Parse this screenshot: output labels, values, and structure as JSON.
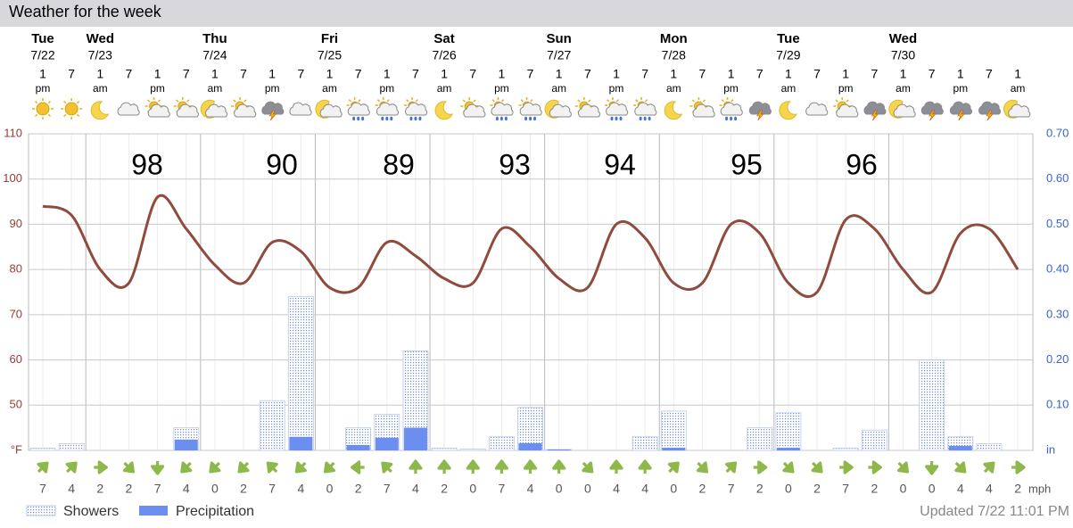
{
  "chart_data": {
    "type": "line",
    "title": "Weather for the week",
    "days": [
      "Tue",
      null,
      "Wed",
      null,
      null,
      null,
      "Thu",
      null,
      null,
      null,
      "Fri",
      null,
      null,
      null,
      "Sat",
      null,
      null,
      null,
      "Sun",
      null,
      null,
      null,
      "Mon",
      null,
      null,
      null,
      "Tue",
      null,
      null,
      null,
      "Wed",
      null,
      null,
      null,
      null
    ],
    "dates": [
      "7/22",
      null,
      "7/23",
      null,
      null,
      null,
      "7/24",
      null,
      null,
      null,
      "7/25",
      null,
      null,
      null,
      "7/26",
      null,
      null,
      null,
      "7/27",
      null,
      null,
      null,
      "7/28",
      null,
      null,
      null,
      "7/29",
      null,
      null,
      null,
      "7/30",
      null,
      null,
      null,
      null
    ],
    "hours": [
      "1",
      "7",
      "1",
      "7",
      "1",
      "7",
      "1",
      "7",
      "1",
      "7",
      "1",
      "7",
      "1",
      "7",
      "1",
      "7",
      "1",
      "7",
      "1",
      "7",
      "1",
      "7",
      "1",
      "7",
      "1",
      "7",
      "1",
      "7",
      "1",
      "7",
      "1",
      "7",
      "1",
      "7",
      "1"
    ],
    "meridiem": [
      "pm",
      null,
      "am",
      null,
      "pm",
      null,
      "am",
      null,
      "pm",
      null,
      "am",
      null,
      "pm",
      null,
      "am",
      null,
      "pm",
      null,
      "am",
      null,
      "pm",
      null,
      "am",
      null,
      "pm",
      null,
      "am",
      null,
      "pm",
      null,
      "am",
      null,
      "pm",
      null,
      "am"
    ],
    "highs": [
      98,
      90,
      89,
      93,
      94,
      95,
      96
    ],
    "ylim": [
      40,
      110
    ],
    "yticks": [
      {
        "value": 40,
        "label": "°F"
      },
      50,
      60,
      70,
      80,
      90,
      100,
      110
    ],
    "y2lim": [
      0,
      0.7
    ],
    "y2ticks": [
      {
        "value": 0,
        "label": "in"
      },
      {
        "value": 0.1,
        "label": "0.10"
      },
      {
        "value": 0.2,
        "label": "0.20"
      },
      {
        "value": 0.3,
        "label": "0.30"
      },
      {
        "value": 0.4,
        "label": "0.40"
      },
      {
        "value": 0.5,
        "label": "0.50"
      },
      {
        "value": 0.6,
        "label": "0.60"
      },
      {
        "value": 0.7,
        "label": "0.70"
      }
    ],
    "grid": true,
    "temperature": {
      "color": "#8e4b3e",
      "values": [
        94,
        92,
        80,
        77,
        96,
        89,
        81,
        77,
        86,
        84,
        76,
        76,
        86,
        83,
        78,
        77,
        89,
        85,
        78,
        76,
        90,
        87,
        77,
        77,
        90,
        88,
        77,
        75,
        91,
        89,
        80,
        75,
        88,
        89,
        80
      ]
    },
    "series": [
      {
        "name": "Showers",
        "color": "#6f8fd8",
        "axis": "y2",
        "values": [
          0.005,
          0.015,
          0,
          0,
          0,
          0.05,
          0,
          0,
          0.11,
          0.34,
          0,
          0.05,
          0.08,
          0.22,
          0.005,
          0.003,
          0.03,
          0.095,
          0.002,
          0,
          0,
          0.03,
          0.087,
          0,
          0,
          0.05,
          0.083,
          0,
          0.005,
          0.045,
          0,
          0.2,
          0.03,
          0.015,
          0
        ]
      },
      {
        "name": "Precipitation",
        "color": "#6b8ef0",
        "axis": "y2",
        "values": [
          0,
          0,
          0,
          0,
          0,
          0.024,
          0,
          0,
          0,
          0.03,
          0,
          0.012,
          0.028,
          0.05,
          0,
          0,
          0,
          0.016,
          0.002,
          0,
          0,
          0,
          0.006,
          0,
          0,
          0,
          0.006,
          0,
          0,
          0,
          0,
          0,
          0.01,
          0,
          0
        ]
      }
    ],
    "wind": {
      "unit": "mph",
      "values": [
        7,
        4,
        2,
        2,
        7,
        4,
        0,
        2,
        7,
        4,
        0,
        2,
        7,
        4,
        2,
        0,
        7,
        4,
        0,
        0,
        4,
        4,
        0,
        2,
        7,
        2,
        0,
        2,
        7,
        2,
        0,
        0,
        4,
        4,
        2
      ]
    },
    "updated": "Updated 7/22 11:01 PM"
  }
}
